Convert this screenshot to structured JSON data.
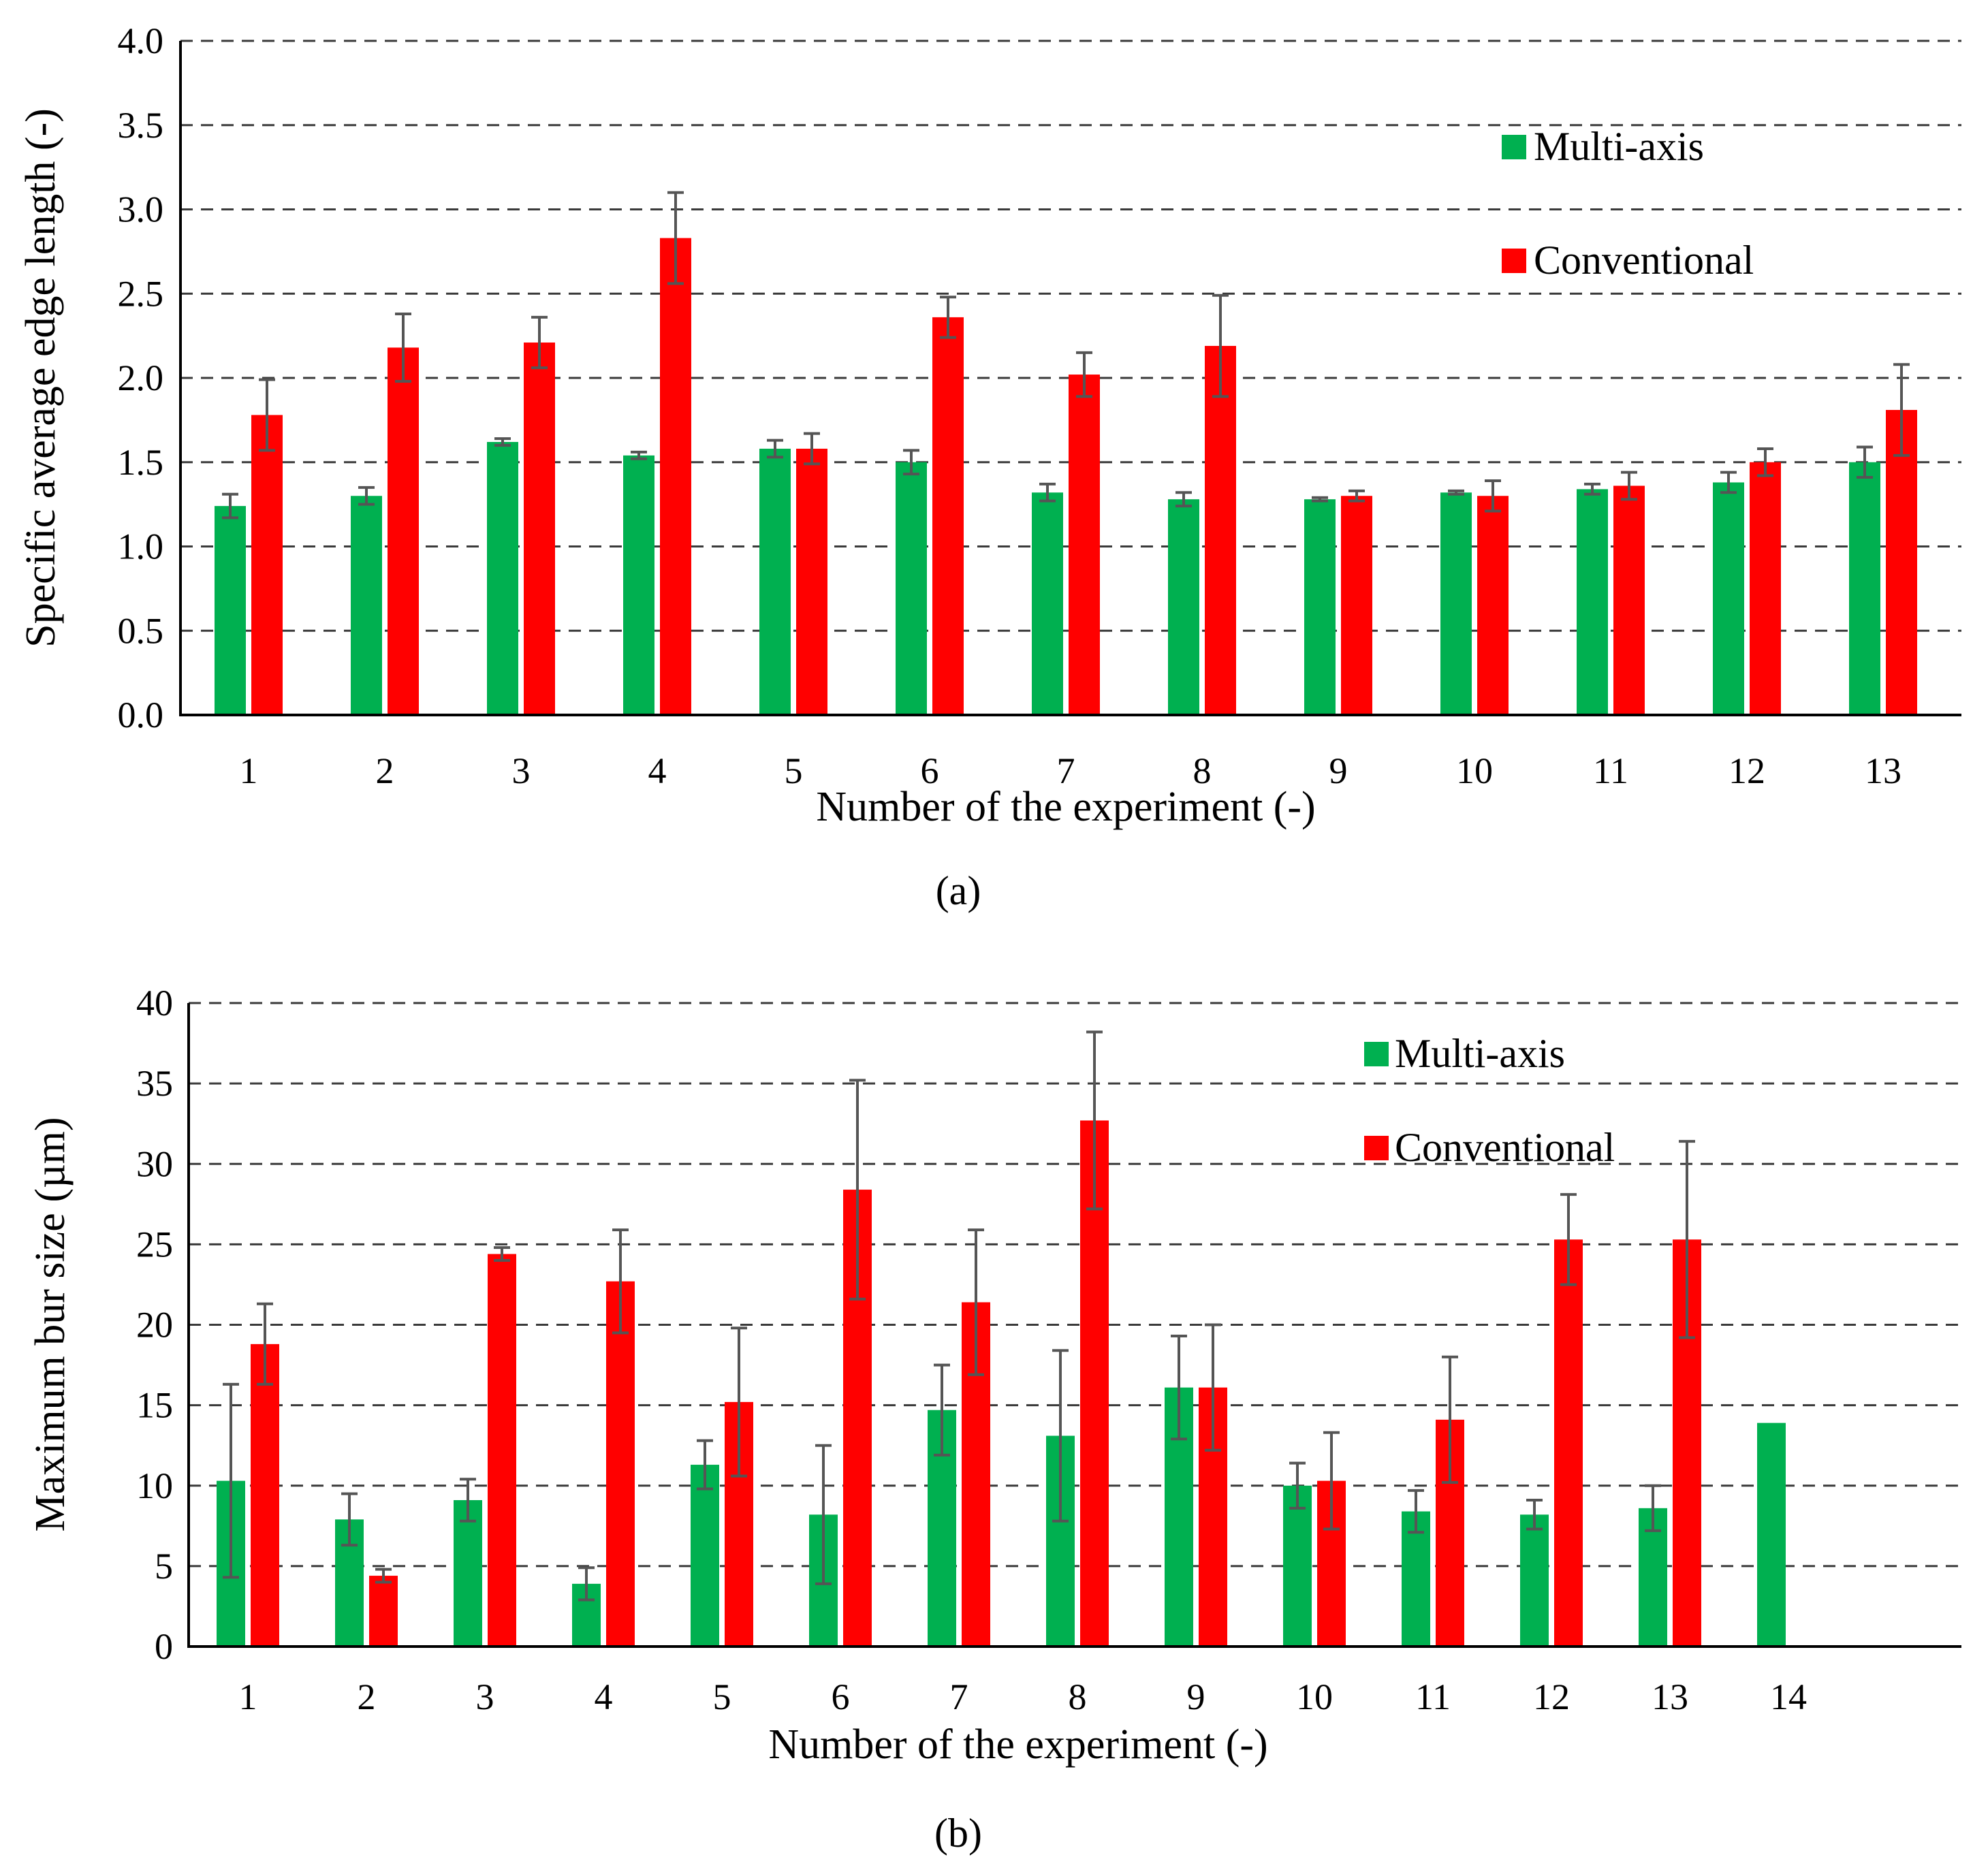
{
  "chart_data": [
    {
      "id": "a",
      "type": "bar",
      "caption": "(a)",
      "xlabel": "Number of the experiment (-)",
      "ylabel": "Specific average edge length (-)",
      "ylim": [
        0,
        4.0
      ],
      "yticks": [
        "0.0",
        "0.5",
        "1.0",
        "1.5",
        "2.0",
        "2.5",
        "3.0",
        "3.5",
        "4.0"
      ],
      "grid": true,
      "legend_position": "top-right",
      "categories": [
        "1",
        "2",
        "3",
        "4",
        "5",
        "6",
        "7",
        "8",
        "9",
        "10",
        "11",
        "12",
        "13"
      ],
      "series": [
        {
          "name": "Multi-axis",
          "color": "#00b050",
          "values": [
            1.24,
            1.3,
            1.62,
            1.54,
            1.58,
            1.5,
            1.32,
            1.28,
            1.28,
            1.32,
            1.34,
            1.38,
            1.5
          ],
          "errors": [
            0.07,
            0.05,
            0.02,
            0.02,
            0.05,
            0.07,
            0.05,
            0.04,
            0.01,
            0.01,
            0.03,
            0.06,
            0.09
          ]
        },
        {
          "name": "Conventional",
          "color": "#ff0000",
          "values": [
            1.78,
            2.18,
            2.21,
            2.83,
            1.58,
            2.36,
            2.02,
            2.19,
            1.3,
            1.3,
            1.36,
            1.5,
            1.81
          ],
          "errors": [
            0.21,
            0.2,
            0.15,
            0.27,
            0.09,
            0.12,
            0.13,
            0.3,
            0.03,
            0.09,
            0.08,
            0.08,
            0.27
          ]
        }
      ]
    },
    {
      "id": "b",
      "type": "bar",
      "caption": "(b)",
      "xlabel": "Number of the experiment (-)",
      "ylabel": "Maximum bur size (µm)",
      "ylim": [
        0,
        40
      ],
      "yticks": [
        "0",
        "5",
        "10",
        "15",
        "20",
        "25",
        "30",
        "35",
        "40"
      ],
      "grid": true,
      "legend_position": "top-right",
      "categories": [
        "1",
        "2",
        "3",
        "4",
        "5",
        "6",
        "7",
        "8",
        "9",
        "10",
        "11",
        "12",
        "13",
        "14"
      ],
      "series": [
        {
          "name": "Multi-axis",
          "color": "#00b050",
          "values": [
            10.3,
            7.9,
            9.1,
            3.9,
            11.3,
            8.2,
            14.7,
            13.1,
            16.1,
            10.0,
            8.4,
            8.2,
            8.6,
            13.9
          ],
          "errors": [
            6.0,
            1.6,
            1.3,
            1.0,
            1.5,
            4.3,
            2.8,
            5.3,
            3.2,
            1.4,
            1.3,
            0.9,
            1.4,
            null
          ]
        },
        {
          "name": "Conventional",
          "color": "#ff0000",
          "values": [
            18.8,
            4.4,
            24.4,
            22.7,
            15.2,
            28.4,
            21.4,
            32.7,
            16.1,
            10.3,
            14.1,
            25.3,
            25.3,
            null
          ],
          "errors": [
            2.5,
            0.4,
            0.4,
            3.2,
            4.6,
            6.8,
            4.5,
            5.5,
            3.9,
            3.0,
            3.9,
            2.8,
            6.1,
            null
          ]
        }
      ]
    }
  ]
}
